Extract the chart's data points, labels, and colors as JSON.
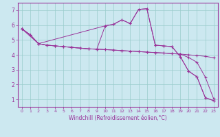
{
  "xlabel": "Windchill (Refroidissement éolien,°C)",
  "bg_color": "#cce8f0",
  "line_color": "#993399",
  "grid_color": "#99cccc",
  "xlim": [
    -0.5,
    23.5
  ],
  "ylim": [
    0.5,
    7.5
  ],
  "yticks": [
    1,
    2,
    3,
    4,
    5,
    6,
    7
  ],
  "xticks": [
    0,
    1,
    2,
    3,
    4,
    5,
    6,
    7,
    8,
    9,
    10,
    11,
    12,
    13,
    14,
    15,
    16,
    17,
    18,
    19,
    20,
    21,
    22,
    23
  ],
  "line1_x": [
    0,
    1,
    2,
    3,
    4,
    5,
    6,
    7,
    8,
    9,
    10,
    11,
    12,
    13,
    14,
    15,
    16,
    17,
    18,
    19,
    20,
    21,
    22,
    23
  ],
  "line1_y": [
    5.75,
    5.35,
    4.75,
    4.65,
    4.6,
    4.55,
    4.5,
    4.45,
    4.4,
    4.38,
    4.35,
    4.32,
    4.28,
    4.25,
    4.22,
    4.18,
    4.15,
    4.12,
    4.08,
    4.05,
    4.0,
    3.95,
    3.9,
    3.8
  ],
  "line2_x": [
    0,
    1,
    2,
    3,
    4,
    5,
    6,
    7,
    8,
    9,
    10,
    11,
    12,
    13,
    14,
    15,
    16,
    17,
    18,
    19,
    20,
    21,
    22,
    23
  ],
  "line2_y": [
    5.75,
    5.35,
    4.75,
    4.65,
    4.6,
    4.55,
    4.5,
    4.45,
    4.4,
    4.38,
    4.35,
    4.32,
    4.28,
    4.25,
    4.22,
    4.18,
    4.15,
    4.12,
    4.08,
    4.05,
    3.82,
    3.5,
    2.5,
    1.05
  ],
  "line3_x": [
    0,
    1,
    2,
    3,
    4,
    5,
    6,
    7,
    8,
    9,
    10,
    11,
    12,
    13,
    14,
    15,
    16,
    17,
    18,
    19,
    20,
    21,
    22,
    23
  ],
  "line3_y": [
    5.75,
    5.35,
    4.75,
    4.65,
    4.6,
    4.55,
    4.5,
    4.45,
    4.4,
    4.38,
    5.95,
    6.05,
    6.35,
    6.1,
    7.05,
    7.1,
    4.65,
    4.6,
    4.55,
    3.88,
    2.9,
    2.52,
    1.12,
    0.92
  ],
  "line4_x": [
    0,
    2,
    10,
    11,
    12,
    13,
    14,
    15,
    16,
    17,
    18,
    19,
    20,
    21,
    22,
    23
  ],
  "line4_y": [
    5.75,
    4.75,
    5.95,
    6.05,
    6.35,
    6.1,
    7.05,
    7.1,
    4.65,
    4.6,
    4.55,
    3.88,
    2.9,
    2.52,
    1.12,
    0.92
  ]
}
